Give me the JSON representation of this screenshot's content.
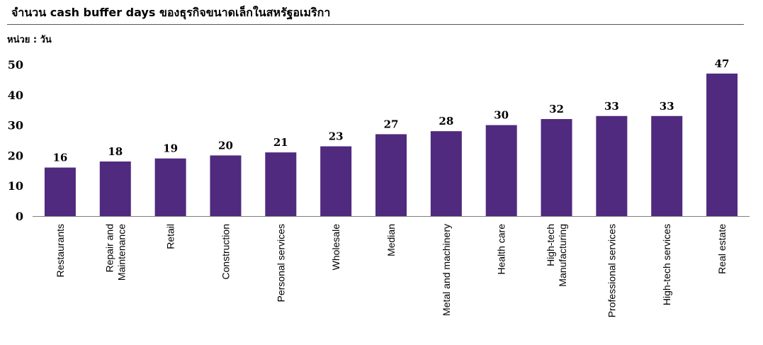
{
  "title": "จำนวน cash buffer days ของธุรกิจขนาดเล็กในสหรัฐอเมริกา",
  "unit_label": "หน่วย : วัน",
  "colors": {
    "bar": "#4f2a7e",
    "axis": "#7f7f7f",
    "text": "#000000"
  },
  "chart_data": {
    "type": "bar",
    "title": "จำนวน cash buffer days ของธุรกิจขนาดเล็กในสหรัฐอเมริกา",
    "ylabel": "หน่วย : วัน",
    "xlabel": "",
    "categories": [
      [
        "Restaurants"
      ],
      [
        "Repair and",
        "Maintenance"
      ],
      [
        "Retail"
      ],
      [
        "Construction"
      ],
      [
        "Personal services"
      ],
      [
        "Wholesale"
      ],
      [
        "Median"
      ],
      [
        "Metal and machinery"
      ],
      [
        "Health care"
      ],
      [
        "High-tech",
        "Manufacturing"
      ],
      [
        "Professional services"
      ],
      [
        "High-tech services"
      ],
      [
        "Real estate"
      ]
    ],
    "values": [
      16,
      18,
      19,
      20,
      21,
      23,
      27,
      28,
      30,
      32,
      33,
      33,
      47
    ],
    "ylim": [
      0,
      50
    ],
    "yticks": [
      0,
      10,
      20,
      30,
      40,
      50
    ],
    "grid": false,
    "legend": "none"
  }
}
